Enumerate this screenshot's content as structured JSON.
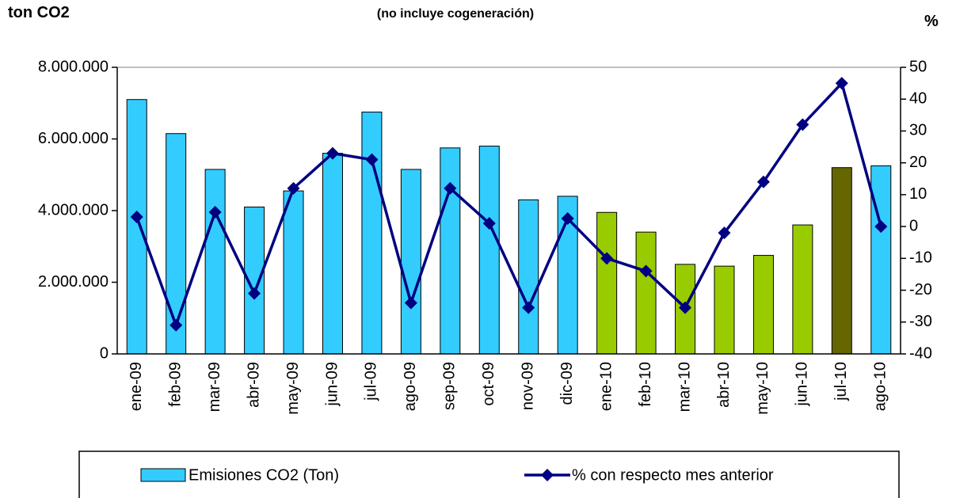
{
  "chart_data": {
    "type": "bar-line",
    "subtitle": "(no incluye cogeneración)",
    "y_label": "ton CO2",
    "y2_label": "%",
    "categories": [
      "ene-09",
      "feb-09",
      "mar-09",
      "abr-09",
      "may-09",
      "jun-09",
      "jul-09",
      "ago-09",
      "sep-09",
      "oct-09",
      "nov-09",
      "dic-09",
      "ene-10",
      "feb-10",
      "mar-10",
      "abr-10",
      "may-10",
      "jun-10",
      "jul-10",
      "ago-10"
    ],
    "series": [
      {
        "name": "Emisiones CO2 (Ton)",
        "type": "bar",
        "color": "#33ccff",
        "colors": [
          "#33ccff",
          "#33ccff",
          "#33ccff",
          "#33ccff",
          "#33ccff",
          "#33ccff",
          "#33ccff",
          "#33ccff",
          "#33ccff",
          "#33ccff",
          "#33ccff",
          "#33ccff",
          "#99cc00",
          "#99cc00",
          "#99cc00",
          "#99cc00",
          "#99cc00",
          "#99cc00",
          "#666600",
          "#33ccff"
        ],
        "values": [
          7100000,
          6150000,
          5150000,
          4100000,
          4550000,
          5600000,
          6750000,
          5150000,
          5750000,
          5800000,
          4300000,
          4400000,
          3950000,
          3400000,
          2500000,
          2450000,
          2750000,
          3600000,
          5200000,
          5250000
        ]
      },
      {
        "name": "% con respecto mes anterior",
        "type": "line",
        "axis": "y2",
        "color": "#000080",
        "values": [
          3,
          -31,
          4.5,
          -21,
          12,
          23,
          21,
          -24,
          12,
          1,
          -25.5,
          2.5,
          -10,
          -14,
          -25.5,
          -2,
          14,
          32,
          45,
          0
        ]
      }
    ],
    "ylim": [
      0,
      8000000
    ],
    "yticks": [
      0,
      {
        "value": 2000000,
        "label": "2.000.000"
      },
      {
        "value": 4000000,
        "label": "4.000.000"
      },
      {
        "value": 6000000,
        "label": "6.000.000"
      },
      {
        "value": 8000000,
        "label": "8.000.000"
      }
    ],
    "y2lim": [
      -40,
      50
    ],
    "y2ticks": [
      -40,
      -30,
      -20,
      -10,
      0,
      10,
      20,
      30,
      40,
      50
    ],
    "grid": false
  }
}
